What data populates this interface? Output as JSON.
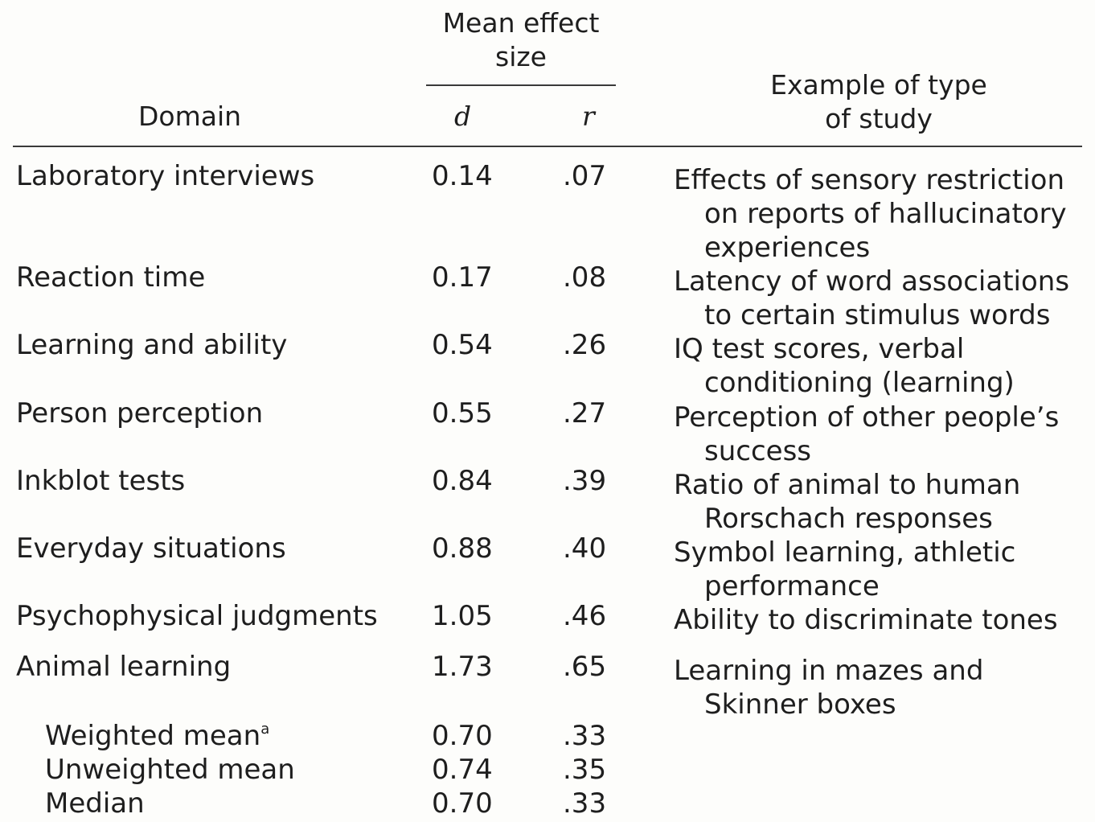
{
  "header": {
    "mean_effect_size": [
      "Mean effect",
      "size"
    ],
    "domain": "Domain",
    "d": "d",
    "r": "r",
    "example": [
      "Example of type",
      "of study"
    ]
  },
  "rows": [
    {
      "domain": "Laboratory interviews",
      "d": "0.14",
      "r": ".07",
      "example": [
        "Effects of sensory restriction",
        "on reports of hallucinatory",
        "experiences"
      ]
    },
    {
      "domain": "Reaction time",
      "d": "0.17",
      "r": ".08",
      "example": [
        "Latency of word associations",
        "to certain stimulus words"
      ]
    },
    {
      "domain": "Learning and ability",
      "d": "0.54",
      "r": ".26",
      "example": [
        "IQ test scores, verbal",
        "conditioning (learning)"
      ]
    },
    {
      "domain": "Person perception",
      "d": "0.55",
      "r": ".27",
      "example": [
        "Perception of other people’s",
        "success"
      ]
    },
    {
      "domain": "Inkblot tests",
      "d": "0.84",
      "r": ".39",
      "example": [
        "Ratio of animal to human",
        "Rorschach responses"
      ]
    },
    {
      "domain": "Everyday situations",
      "d": "0.88",
      "r": ".40",
      "example": [
        "Symbol learning, athletic",
        "performance"
      ]
    },
    {
      "domain": "Psychophysical judgments",
      "d": "1.05",
      "r": ".46",
      "example": [
        "Ability to discriminate tones"
      ]
    },
    {
      "domain": "Animal learning",
      "d": "1.73",
      "r": ".65",
      "example": [
        "Learning in mazes and",
        "Skinner boxes"
      ]
    }
  ],
  "summary": [
    {
      "label": "Weighted mean",
      "footnote": "a",
      "d": "0.70",
      "r": ".33"
    },
    {
      "label": "Unweighted mean",
      "footnote": "",
      "d": "0.74",
      "r": ".35"
    },
    {
      "label": "Median",
      "footnote": "",
      "d": "0.70",
      "r": ".33"
    }
  ]
}
